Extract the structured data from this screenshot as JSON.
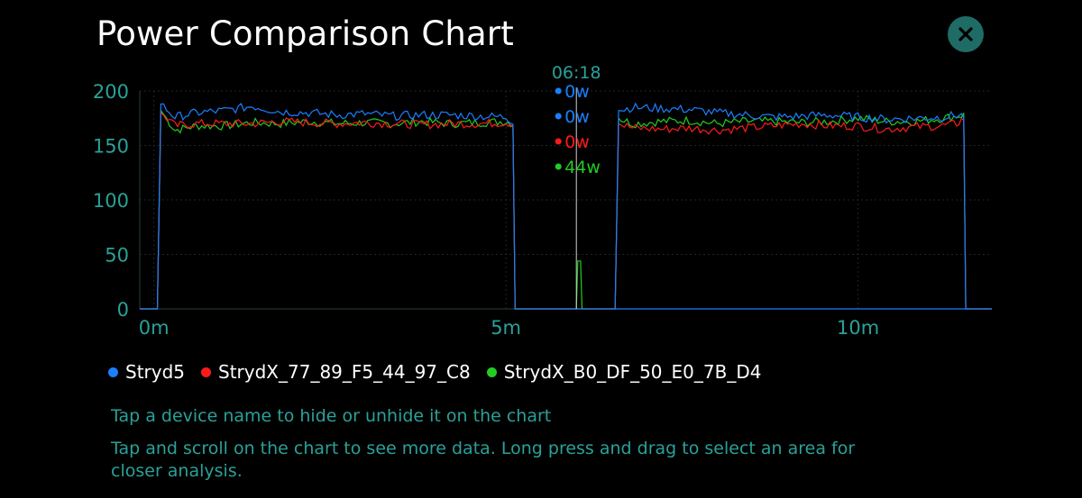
{
  "header": {
    "title": "Power Comparison Chart",
    "close_icon": "close-icon"
  },
  "colors": {
    "accent": "#1f6b66",
    "axis_text": "#2aa198",
    "grid": "#1e2a2a",
    "Stryd5": "#1a7fff",
    "StrydX_77": "#ff1a1a",
    "StrydX_B0": "#22cc22"
  },
  "chart_data": {
    "type": "line",
    "title": "Power Comparison Chart",
    "xlabel": "",
    "ylabel": "",
    "x_unit": "minutes",
    "xlim": [
      -0.2,
      11.9
    ],
    "ylim": [
      0,
      200
    ],
    "yticks": [
      0,
      50,
      100,
      150,
      200
    ],
    "ytick_labels": [
      "0",
      "50",
      "100",
      "150",
      "200"
    ],
    "xticks": [
      0,
      5,
      10
    ],
    "xtick_labels": [
      "0m",
      "5m",
      "10m"
    ],
    "grid": true,
    "legend_position": "bottom",
    "series": [
      {
        "name": "Stryd5",
        "color": "#1a7fff",
        "points": [
          [
            -0.2,
            0
          ],
          [
            0.05,
            0
          ],
          [
            0.1,
            188
          ],
          [
            0.3,
            176
          ],
          [
            0.6,
            180
          ],
          [
            1.0,
            182
          ],
          [
            1.4,
            186
          ],
          [
            1.8,
            181
          ],
          [
            2.2,
            180
          ],
          [
            2.6,
            178
          ],
          [
            3.0,
            179
          ],
          [
            3.4,
            177
          ],
          [
            3.8,
            178
          ],
          [
            4.2,
            178
          ],
          [
            4.6,
            177
          ],
          [
            5.0,
            176
          ],
          [
            5.1,
            172
          ],
          [
            5.13,
            0
          ],
          [
            11.9,
            0
          ]
        ]
      },
      {
        "name": "StrydX_77_89_F5_44_97_C8",
        "color": "#ff1a1a",
        "points": [
          [
            -0.2,
            0
          ],
          [
            0.05,
            0
          ],
          [
            0.1,
            180
          ],
          [
            0.3,
            168
          ],
          [
            0.6,
            170
          ],
          [
            1.0,
            170
          ],
          [
            1.4,
            170
          ],
          [
            1.8,
            172
          ],
          [
            2.2,
            171
          ],
          [
            2.6,
            170
          ],
          [
            3.0,
            171
          ],
          [
            3.4,
            170
          ],
          [
            3.8,
            169
          ],
          [
            4.2,
            170
          ],
          [
            4.6,
            170
          ],
          [
            5.0,
            171
          ],
          [
            5.1,
            170
          ],
          [
            5.13,
            0
          ],
          [
            6.55,
            0
          ],
          [
            6.6,
            170
          ],
          [
            6.8,
            166
          ],
          [
            7.2,
            165
          ],
          [
            7.6,
            166
          ],
          [
            8.0,
            164
          ],
          [
            8.4,
            166
          ],
          [
            8.8,
            168
          ],
          [
            9.2,
            170
          ],
          [
            9.6,
            168
          ],
          [
            10.0,
            168
          ],
          [
            10.4,
            165
          ],
          [
            10.8,
            167
          ],
          [
            11.2,
            168
          ],
          [
            11.4,
            170
          ],
          [
            11.5,
            175
          ],
          [
            11.53,
            0
          ],
          [
            11.9,
            0
          ]
        ]
      },
      {
        "name": "StrydX_B0_DF_50_E0_7B_D4",
        "color": "#22cc22",
        "points": [
          [
            -0.2,
            0
          ],
          [
            0.05,
            0
          ],
          [
            0.1,
            182
          ],
          [
            0.3,
            164
          ],
          [
            0.6,
            168
          ],
          [
            1.0,
            168
          ],
          [
            1.4,
            171
          ],
          [
            1.8,
            170
          ],
          [
            2.2,
            172
          ],
          [
            2.6,
            170
          ],
          [
            3.0,
            171
          ],
          [
            3.4,
            170
          ],
          [
            3.8,
            172
          ],
          [
            4.2,
            170
          ],
          [
            4.6,
            171
          ],
          [
            5.0,
            172
          ],
          [
            5.1,
            170
          ],
          [
            5.13,
            0
          ],
          [
            6.0,
            0
          ],
          [
            6.02,
            44
          ],
          [
            6.06,
            44
          ],
          [
            6.08,
            0
          ],
          [
            6.55,
            0
          ],
          [
            6.6,
            175
          ],
          [
            6.8,
            170
          ],
          [
            7.2,
            172
          ],
          [
            7.6,
            173
          ],
          [
            8.0,
            170
          ],
          [
            8.4,
            172
          ],
          [
            8.8,
            172
          ],
          [
            9.2,
            171
          ],
          [
            9.6,
            172
          ],
          [
            10.0,
            175
          ],
          [
            10.4,
            172
          ],
          [
            10.8,
            172
          ],
          [
            11.2,
            175
          ],
          [
            11.4,
            177
          ],
          [
            11.5,
            178
          ],
          [
            11.53,
            0
          ],
          [
            11.9,
            0
          ]
        ]
      }
    ],
    "stryd5_second_segment": [
      [
        6.55,
        0
      ],
      [
        6.6,
        182
      ],
      [
        6.8,
        185
      ],
      [
        7.2,
        184
      ],
      [
        7.6,
        183
      ],
      [
        8.0,
        180
      ],
      [
        8.4,
        178
      ],
      [
        8.8,
        176
      ],
      [
        9.2,
        177
      ],
      [
        9.6,
        178
      ],
      [
        10.0,
        176
      ],
      [
        10.4,
        174
      ],
      [
        10.8,
        175
      ],
      [
        11.2,
        176
      ],
      [
        11.4,
        178
      ],
      [
        11.5,
        177
      ],
      [
        11.53,
        0
      ]
    ],
    "cursor": {
      "x": 6.0,
      "time_label": "06:18",
      "values": [
        {
          "label": "0w",
          "color": "#1a7fff"
        },
        {
          "label": "0w",
          "color": "#1a7fff"
        },
        {
          "label": "0w",
          "color": "#ff1a1a"
        },
        {
          "label": "44w",
          "color": "#22cc22"
        }
      ]
    }
  },
  "legend": [
    {
      "label": "Stryd5",
      "color": "#1a7fff"
    },
    {
      "label": "StrydX_77_89_F5_44_97_C8",
      "color": "#ff1a1a"
    },
    {
      "label": "StrydX_B0_DF_50_E0_7B_D4",
      "color": "#22cc22"
    }
  ],
  "hints": {
    "line1": "Tap a device name to hide or unhide it on the chart",
    "line2": "Tap and scroll on the chart to see more data. Long press and drag to select an area for closer analysis."
  }
}
